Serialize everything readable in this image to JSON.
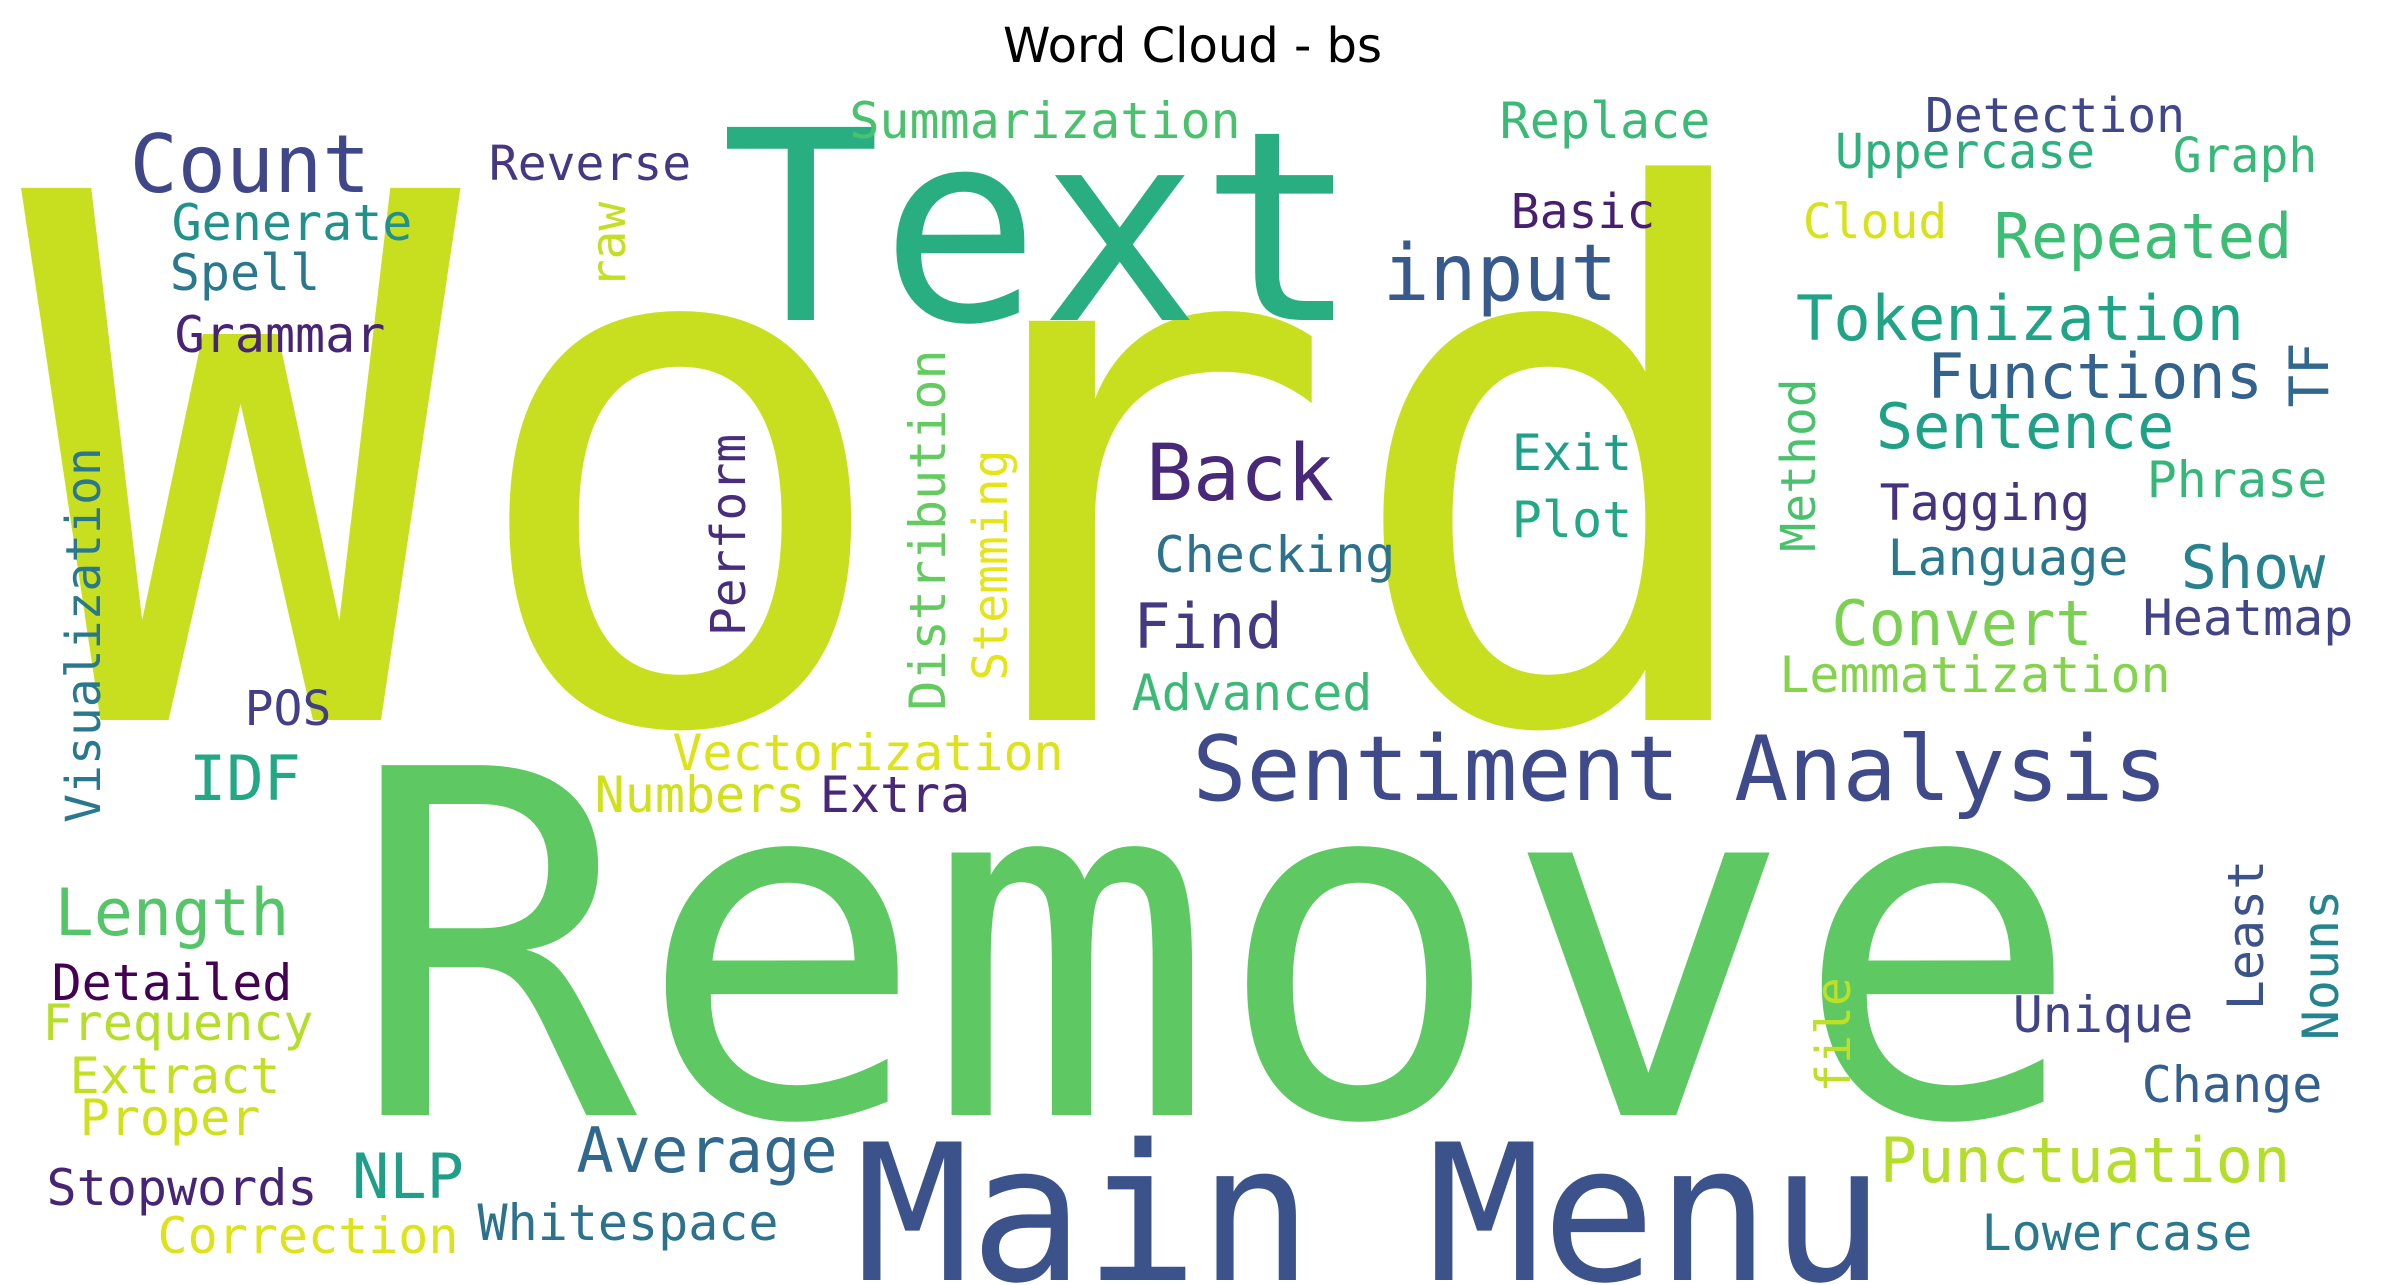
{
  "title": "Word Cloud - bs",
  "words": [
    {
      "text": "Word",
      "color": "#c8df20"
    },
    {
      "text": "Remove",
      "color": "#5ec962"
    },
    {
      "text": "Text",
      "color": "#28ae80"
    },
    {
      "text": "Main Menu",
      "color": "#3b528b"
    },
    {
      "text": "Sentiment Analysis",
      "color": "#3e4a89"
    },
    {
      "text": "Count",
      "color": "#3f4788"
    },
    {
      "text": "input",
      "color": "#38598c"
    },
    {
      "text": "Back",
      "color": "#482878"
    },
    {
      "text": "Summarization",
      "color": "#4ac16d"
    },
    {
      "text": "Replace",
      "color": "#3aba76"
    },
    {
      "text": "Detection",
      "color": "#3f4788"
    },
    {
      "text": "Uppercase",
      "color": "#2db27d"
    },
    {
      "text": "Graph",
      "color": "#37b878"
    },
    {
      "text": "Reverse",
      "color": "#453781"
    },
    {
      "text": "Generate",
      "color": "#21918c"
    },
    {
      "text": "Spell",
      "color": "#2a788e"
    },
    {
      "text": "Grammar",
      "color": "#482475"
    },
    {
      "text": "raw",
      "color": "#c2df23"
    },
    {
      "text": "Basic",
      "color": "#481f70"
    },
    {
      "text": "Cloud",
      "color": "#d8e219"
    },
    {
      "text": "Repeated",
      "color": "#3dbc74"
    },
    {
      "text": "Tokenization",
      "color": "#20a486"
    },
    {
      "text": "Functions",
      "color": "#33638d"
    },
    {
      "text": "TF",
      "color": "#31688e"
    },
    {
      "text": "Sentence",
      "color": "#1fa187"
    },
    {
      "text": "Exit",
      "color": "#1f9e89"
    },
    {
      "text": "Plot",
      "color": "#22a884"
    },
    {
      "text": "Method",
      "color": "#4ac16d"
    },
    {
      "text": "Phrase",
      "color": "#35b779"
    },
    {
      "text": "Tagging",
      "color": "#46337e"
    },
    {
      "text": "Checking",
      "color": "#2c728e"
    },
    {
      "text": "Language",
      "color": "#2a788e"
    },
    {
      "text": "Show",
      "color": "#26828e"
    },
    {
      "text": "Heatmap",
      "color": "#414487"
    },
    {
      "text": "Find",
      "color": "#443983"
    },
    {
      "text": "Convert",
      "color": "#7ad151"
    },
    {
      "text": "Lemmatization",
      "color": "#84d44b"
    },
    {
      "text": "Advanced",
      "color": "#3aba76"
    },
    {
      "text": "Visualization",
      "color": "#2a788e"
    },
    {
      "text": "Perform",
      "color": "#472d7b"
    },
    {
      "text": "Distribution",
      "color": "#63cb5f"
    },
    {
      "text": "Stemming",
      "color": "#e5e419"
    },
    {
      "text": "POS",
      "color": "#433e85"
    },
    {
      "text": "IDF",
      "color": "#22a884"
    },
    {
      "text": "Vectorization",
      "color": "#dde318"
    },
    {
      "text": "Numbers",
      "color": "#d0e11c"
    },
    {
      "text": "Extra",
      "color": "#482878"
    },
    {
      "text": "Length",
      "color": "#54c568"
    },
    {
      "text": "Detailed",
      "color": "#440154"
    },
    {
      "text": "Frequency",
      "color": "#b5de2b"
    },
    {
      "text": "Extract",
      "color": "#c2df23"
    },
    {
      "text": "Proper",
      "color": "#d0e11c"
    },
    {
      "text": "Stopwords",
      "color": "#482475"
    },
    {
      "text": "Correction",
      "color": "#dde318"
    },
    {
      "text": "NLP",
      "color": "#1f9e89"
    },
    {
      "text": "Average",
      "color": "#31688e"
    },
    {
      "text": "Whitespace",
      "color": "#2c728e"
    },
    {
      "text": "Punctuation",
      "color": "#b5de2b"
    },
    {
      "text": "Lowercase",
      "color": "#2a788e"
    },
    {
      "text": "Unique",
      "color": "#414487"
    },
    {
      "text": "Change",
      "color": "#355f8d"
    },
    {
      "text": "Least",
      "color": "#3b528b"
    },
    {
      "text": "Nouns",
      "color": "#25848e"
    },
    {
      "text": "file",
      "color": "#bddf26"
    }
  ]
}
